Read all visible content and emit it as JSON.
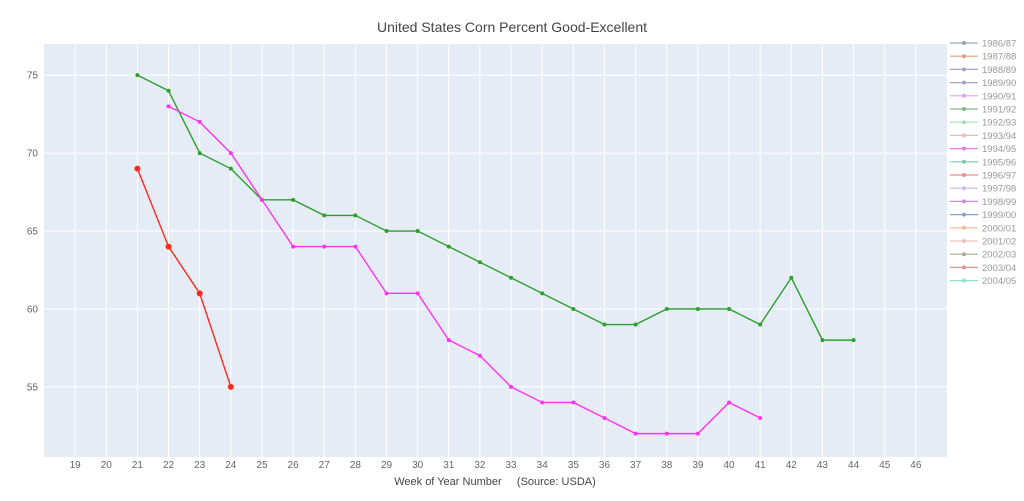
{
  "chart_data": {
    "type": "line",
    "title": "United States Corn Percent Good-Excellent",
    "xlabel": "Week of Year Number     (Source: USDA)",
    "ylabel": "",
    "xlim": [
      18,
      47
    ],
    "ylim": [
      50.5,
      77
    ],
    "xticks": [
      19,
      20,
      21,
      22,
      23,
      24,
      25,
      26,
      27,
      28,
      29,
      30,
      31,
      32,
      33,
      34,
      35,
      36,
      37,
      38,
      39,
      40,
      41,
      42,
      43,
      44,
      45,
      46
    ],
    "yticks": [
      55,
      60,
      65,
      70,
      75
    ],
    "grid": true,
    "legend_position": "right",
    "legend": [
      {
        "name": "1986/87",
        "color": "#9aa7b5"
      },
      {
        "name": "1987/88",
        "color": "#e0a080"
      },
      {
        "name": "1988/89",
        "color": "#a7a3c8"
      },
      {
        "name": "1989/90",
        "color": "#a7a3c8"
      },
      {
        "name": "1990/91",
        "color": "#e8a0e0"
      },
      {
        "name": "1991/92",
        "color": "#86b686"
      },
      {
        "name": "1992/93",
        "color": "#9fe0bd"
      },
      {
        "name": "1993/94",
        "color": "#f0b8b0"
      },
      {
        "name": "1994/95",
        "color": "#e27ee8"
      },
      {
        "name": "1995/96",
        "color": "#7fc8a8"
      },
      {
        "name": "1996/97",
        "color": "#f08888"
      },
      {
        "name": "1997/98",
        "color": "#c9b8f0"
      },
      {
        "name": "1998/99",
        "color": "#d08ae0"
      },
      {
        "name": "1999/00",
        "color": "#7aa8c8"
      },
      {
        "name": "2000/01",
        "color": "#f0b890"
      },
      {
        "name": "2001/02",
        "color": "#f0c0c0"
      },
      {
        "name": "2002/03",
        "color": "#b0a890"
      },
      {
        "name": "2003/04",
        "color": "#e89090"
      },
      {
        "name": "2004/05",
        "color": "#90e0d0"
      }
    ],
    "series": [
      {
        "color": "#2ca02c",
        "x": [
          21,
          22,
          23,
          24,
          25,
          26,
          27,
          28,
          29,
          30,
          31,
          32,
          33,
          34,
          35,
          36,
          37,
          38,
          39,
          40,
          41,
          42,
          43,
          44
        ],
        "y": [
          75,
          74,
          70,
          69,
          67,
          67,
          66,
          66,
          65,
          65,
          64,
          63,
          62,
          61,
          60,
          59,
          59,
          60,
          60,
          60,
          59,
          62,
          58,
          58
        ]
      },
      {
        "color": "#ff33ee",
        "x": [
          22,
          23,
          24,
          25,
          26,
          27,
          28,
          29,
          30,
          31,
          32,
          33,
          34,
          35,
          36,
          37,
          38,
          39,
          40,
          41
        ],
        "y": [
          73,
          72,
          70,
          67,
          64,
          64,
          64,
          61,
          61,
          58,
          57,
          55,
          54,
          54,
          53,
          52,
          52,
          52,
          54,
          53
        ]
      },
      {
        "color": "#ff2a1a",
        "x": [
          21,
          22,
          23,
          24
        ],
        "y": [
          69,
          64,
          61,
          55
        ]
      }
    ]
  }
}
